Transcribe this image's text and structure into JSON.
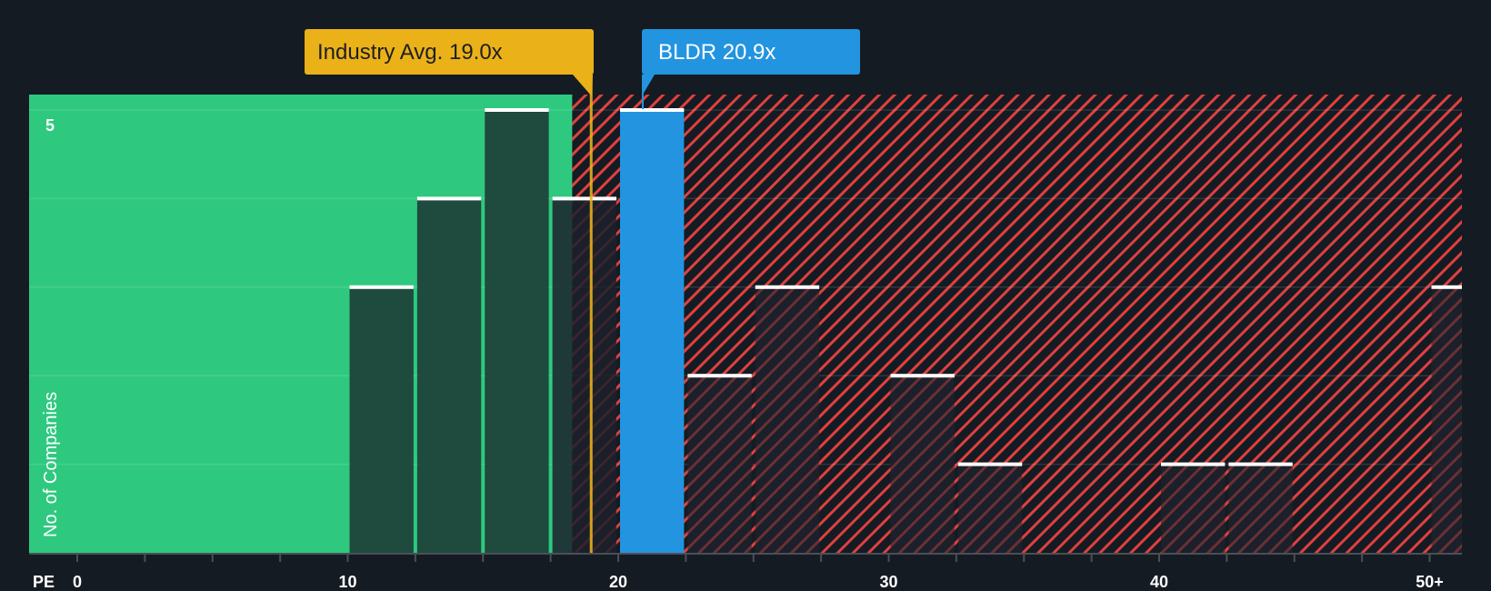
{
  "chart_data": {
    "type": "bar",
    "title": "",
    "xlabel": "PE",
    "ylabel": "No. of Companies",
    "x_ticks": [
      "0",
      "10",
      "20",
      "30",
      "40",
      "50+"
    ],
    "y_ticks": [
      "5"
    ],
    "xlim": [
      0,
      51.3
    ],
    "ylim": [
      0,
      5.15
    ],
    "grid": true,
    "bin_width": 2.5,
    "bins": [
      {
        "start": 10.0,
        "end": 12.5,
        "count": 3
      },
      {
        "start": 12.5,
        "end": 15.0,
        "count": 4
      },
      {
        "start": 15.0,
        "end": 17.5,
        "count": 5
      },
      {
        "start": 17.5,
        "end": 20.0,
        "count": 4
      },
      {
        "start": 20.0,
        "end": 22.5,
        "count": 5,
        "highlight": "BLDR"
      },
      {
        "start": 22.5,
        "end": 25.0,
        "count": 2
      },
      {
        "start": 25.0,
        "end": 27.5,
        "count": 3
      },
      {
        "start": 30.0,
        "end": 32.5,
        "count": 2
      },
      {
        "start": 32.5,
        "end": 35.0,
        "count": 1
      },
      {
        "start": 40.0,
        "end": 42.5,
        "count": 1
      },
      {
        "start": 42.5,
        "end": 45.0,
        "count": 1
      },
      {
        "start": 50.0,
        "end": 51.3,
        "count": 3,
        "label": "50+"
      }
    ],
    "annotations": [
      {
        "label": "Industry Avg. 19.0x",
        "value": 19.0,
        "color": "#eab118"
      },
      {
        "label": "BLDR 20.9x",
        "value": 20.9,
        "color": "#2394e0"
      }
    ],
    "regions": [
      {
        "name": "undervalued",
        "from": 0,
        "to": 18.3,
        "color": "#2ec97f"
      },
      {
        "name": "overvalued",
        "from": 18.3,
        "to": 51.3,
        "color": "#e0403f",
        "pattern": "hatched"
      }
    ]
  },
  "callouts": {
    "industry": {
      "text": "Industry Avg. 19.0x"
    },
    "company": {
      "text": "BLDR 20.9x"
    }
  },
  "axis": {
    "x_title": "PE",
    "y_title": "No. of Companies",
    "y_tick_5": "5",
    "x_labels": [
      "0",
      "10",
      "20",
      "30",
      "40",
      "50+"
    ]
  },
  "colors": {
    "background": "#151b23",
    "green_zone": "#2ec97f",
    "red_hatch": "#e0403f",
    "industry": "#eab118",
    "company": "#2394e0",
    "bar_dark_green": "#1f4a40",
    "bar_dark": "#1b212b",
    "bar_cap": "#ffffff"
  }
}
